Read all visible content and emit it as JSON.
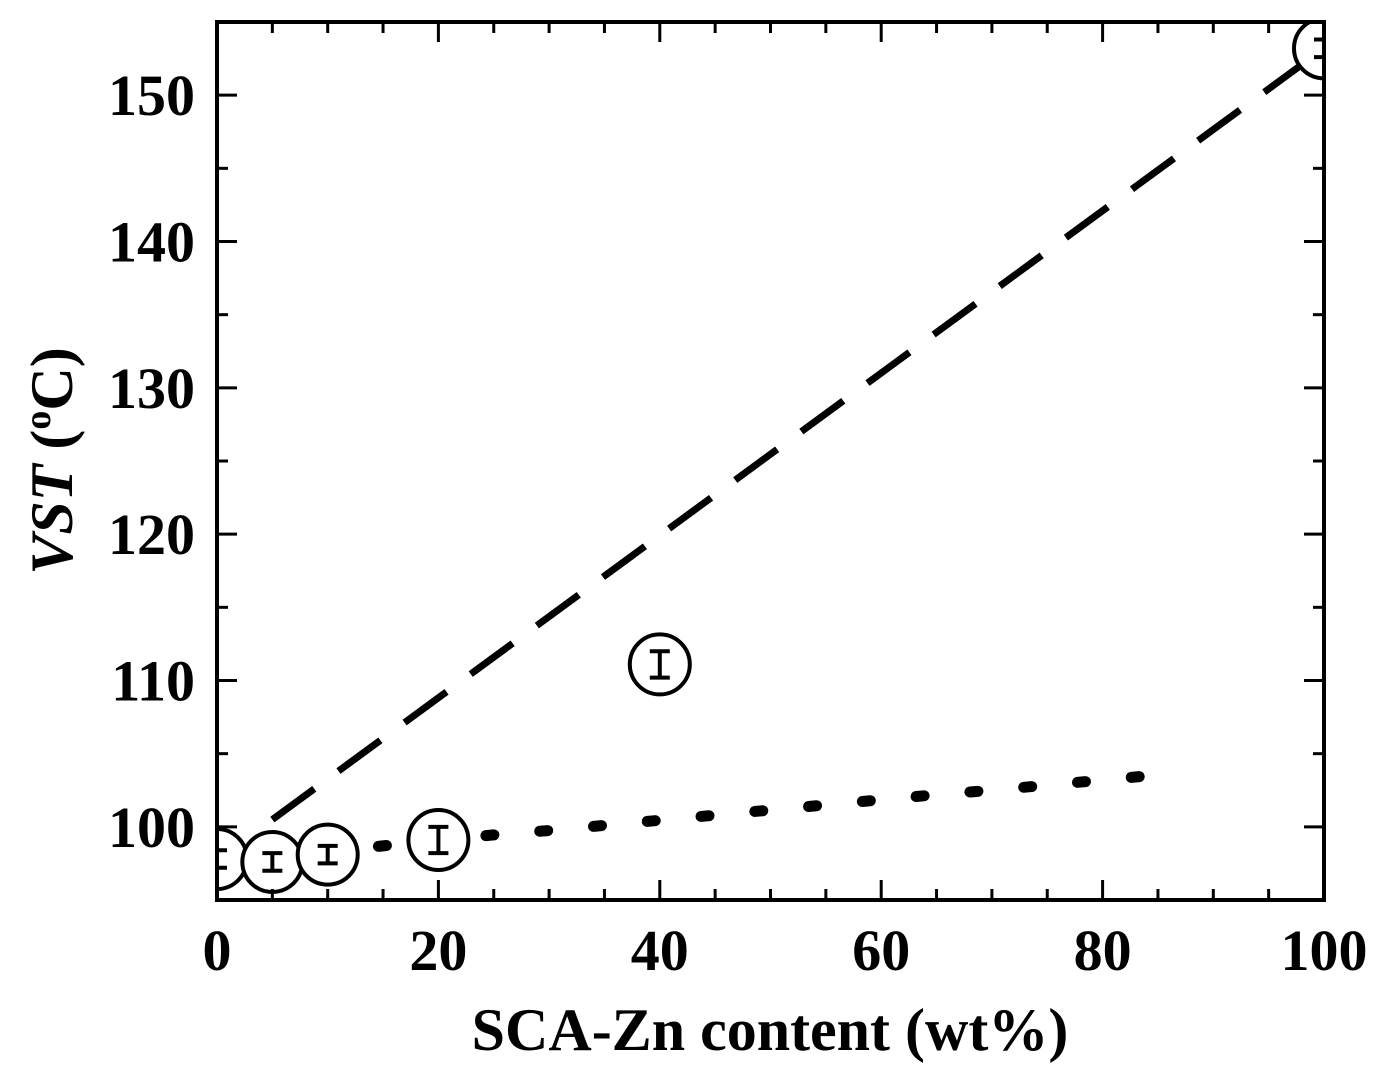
{
  "chart_data": {
    "type": "scatter",
    "xlabel": "SCA-Zn content (wt%)",
    "ylabel_prefix": "VST",
    "ylabel_suffix": " (",
    "ylabel_degree": "o",
    "ylabel_unit": "C)",
    "xlim": [
      0,
      100
    ],
    "ylim": [
      95,
      155
    ],
    "x_major_ticks": [
      0,
      20,
      40,
      60,
      80,
      100
    ],
    "x_tick_labels": [
      "0",
      "20",
      "40",
      "60",
      "80",
      "100"
    ],
    "x_minor_step": 5,
    "y_major_ticks": [
      100,
      110,
      120,
      130,
      140,
      150
    ],
    "y_tick_labels": [
      "100",
      "110",
      "120",
      "130",
      "140",
      "150"
    ],
    "y_minor_step": 5,
    "grid": false,
    "series": [
      {
        "marker": "circle-with-errorbar",
        "x": [
          0,
          5,
          10,
          20,
          40,
          100
        ],
        "y": [
          97.8,
          97.6,
          98.1,
          99.1,
          111.1,
          153.2
        ],
        "errors": [
          0.6,
          0.6,
          0.6,
          0.9,
          0.9,
          0.6
        ]
      }
    ],
    "lines": [
      {
        "style": "dashed",
        "x": [
          5,
          100
        ],
        "y": [
          100.5,
          153.2
        ]
      },
      {
        "style": "dotted",
        "x": [
          0,
          5,
          10,
          15,
          20,
          25,
          30,
          35,
          40,
          45,
          50,
          55,
          60,
          65,
          70,
          75,
          80,
          85
        ],
        "y": [
          97.8,
          97.95,
          98.3,
          98.7,
          99.1,
          99.45,
          99.75,
          100.1,
          100.45,
          100.8,
          101.15,
          101.5,
          101.85,
          102.2,
          102.5,
          102.85,
          103.2,
          103.55
        ]
      }
    ]
  }
}
